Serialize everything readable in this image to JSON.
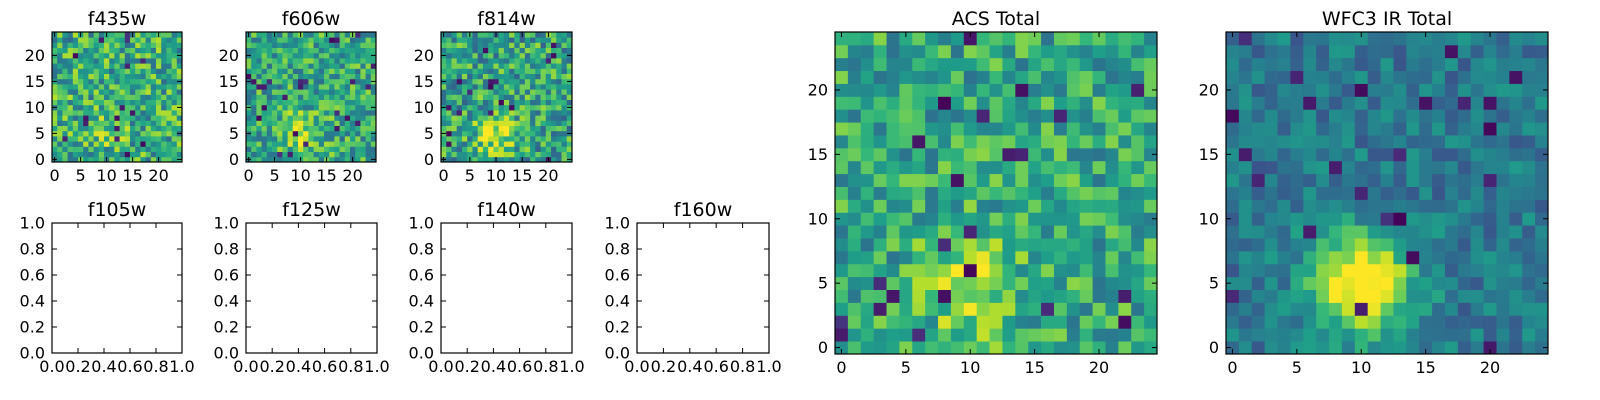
{
  "chart_data": [
    {
      "type": "heatmap",
      "title": "f435w",
      "xticks": [
        "0",
        "5",
        "10",
        "15",
        "20"
      ],
      "yticks": [
        "0",
        "5",
        "10",
        "15",
        "20"
      ],
      "xlim": [
        -0.5,
        24.5
      ],
      "ylim": [
        -0.5,
        24.5
      ],
      "colormap": "viridis",
      "grid": false,
      "empty": false,
      "seed": 11,
      "blob_strength": 0.1,
      "base": 0.62,
      "noise": 0.55
    },
    {
      "type": "heatmap",
      "title": "f606w",
      "xticks": [
        "0",
        "5",
        "10",
        "15",
        "20"
      ],
      "yticks": [
        "0",
        "5",
        "10",
        "15",
        "20"
      ],
      "xlim": [
        -0.5,
        24.5
      ],
      "ylim": [
        -0.5,
        24.5
      ],
      "colormap": "viridis",
      "grid": false,
      "empty": false,
      "seed": 23,
      "blob_strength": 0.3,
      "base": 0.6,
      "noise": 0.5
    },
    {
      "type": "heatmap",
      "title": "f814w",
      "xticks": [
        "0",
        "5",
        "10",
        "15",
        "20"
      ],
      "yticks": [
        "0",
        "5",
        "10",
        "15",
        "20"
      ],
      "xlim": [
        -0.5,
        24.5
      ],
      "ylim": [
        -0.5,
        24.5
      ],
      "colormap": "viridis",
      "grid": false,
      "empty": false,
      "seed": 37,
      "blob_strength": 0.35,
      "base": 0.58,
      "noise": 0.55
    },
    {
      "type": "heatmap",
      "title": "f105w",
      "xticks": [
        "0.0",
        "0.2",
        "0.4",
        "0.6",
        "0.8",
        "1.0"
      ],
      "yticks": [
        "0.0",
        "0.2",
        "0.4",
        "0.6",
        "0.8",
        "1.0"
      ],
      "xlim": [
        0,
        1
      ],
      "ylim": [
        0,
        1
      ],
      "grid": false,
      "empty": true
    },
    {
      "type": "heatmap",
      "title": "f125w",
      "xticks": [
        "0.0",
        "0.2",
        "0.4",
        "0.6",
        "0.8",
        "1.0"
      ],
      "yticks": [
        "0.0",
        "0.2",
        "0.4",
        "0.6",
        "0.8",
        "1.0"
      ],
      "xlim": [
        0,
        1
      ],
      "ylim": [
        0,
        1
      ],
      "grid": false,
      "empty": true
    },
    {
      "type": "heatmap",
      "title": "f140w",
      "xticks": [
        "0.0",
        "0.2",
        "0.4",
        "0.6",
        "0.8",
        "1.0"
      ],
      "yticks": [
        "0.0",
        "0.2",
        "0.4",
        "0.6",
        "0.8",
        "1.0"
      ],
      "xlim": [
        0,
        1
      ],
      "ylim": [
        0,
        1
      ],
      "grid": false,
      "empty": true
    },
    {
      "type": "heatmap",
      "title": "f160w",
      "xticks": [
        "0.0",
        "0.2",
        "0.4",
        "0.6",
        "0.8",
        "1.0"
      ],
      "yticks": [
        "0.0",
        "0.2",
        "0.4",
        "0.6",
        "0.8",
        "1.0"
      ],
      "xlim": [
        0,
        1
      ],
      "ylim": [
        0,
        1
      ],
      "grid": false,
      "empty": true
    },
    {
      "type": "heatmap",
      "title": "ACS Total",
      "xticks": [
        "0",
        "5",
        "10",
        "15",
        "20"
      ],
      "yticks": [
        "0",
        "5",
        "10",
        "15",
        "20"
      ],
      "xlim": [
        -0.5,
        24.5
      ],
      "ylim": [
        -0.5,
        24.5
      ],
      "colormap": "viridis",
      "grid": false,
      "empty": false,
      "seed": 51,
      "blob_strength": 0.3,
      "base": 0.6,
      "noise": 0.45
    },
    {
      "type": "heatmap",
      "title": "WFC3 IR Total",
      "xticks": [
        "0",
        "5",
        "10",
        "15",
        "20"
      ],
      "yticks": [
        "0",
        "5",
        "10",
        "15",
        "20"
      ],
      "xlim": [
        -0.5,
        24.5
      ],
      "ylim": [
        -0.5,
        24.5
      ],
      "colormap": "viridis",
      "grid": false,
      "empty": false,
      "seed": 73,
      "blob_strength": 0.75,
      "base": 0.4,
      "noise": 0.28
    }
  ]
}
